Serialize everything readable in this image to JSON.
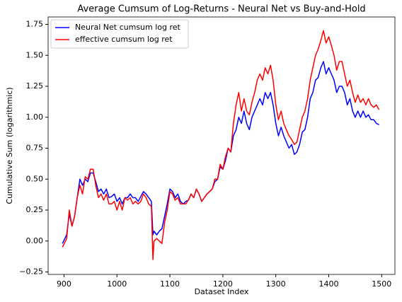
{
  "chart_data": {
    "type": "line",
    "title": "Average Cumsum of Log-Returns - Neural Net vs Buy-and-Hold",
    "xlabel": "Dataset Index",
    "ylabel": "Cumulative Sum (logarithmic)",
    "legend": "upper left",
    "xlim": [
      870,
      1525
    ],
    "ylim": [
      -0.27,
      1.81
    ],
    "xticks": [
      900,
      1000,
      1100,
      1200,
      1300,
      1400,
      1500
    ],
    "yticks": [
      {
        "value": -0.25,
        "label": "−0.25"
      },
      {
        "value": 0,
        "label": "0.00"
      },
      0.25,
      {
        "value": 0.5,
        "label": "0.50"
      },
      0.75,
      {
        "value": 1,
        "label": "1.00"
      },
      1.25,
      {
        "value": 1.5,
        "label": "1.50"
      },
      1.75
    ],
    "x": [
      897,
      905,
      910,
      915,
      920,
      925,
      930,
      935,
      940,
      945,
      950,
      955,
      960,
      965,
      970,
      975,
      980,
      985,
      990,
      995,
      1000,
      1005,
      1010,
      1015,
      1020,
      1025,
      1030,
      1035,
      1040,
      1045,
      1050,
      1055,
      1060,
      1065,
      1068,
      1070,
      1075,
      1080,
      1085,
      1090,
      1095,
      1100,
      1105,
      1110,
      1115,
      1120,
      1125,
      1130,
      1135,
      1140,
      1145,
      1150,
      1155,
      1160,
      1165,
      1170,
      1175,
      1180,
      1185,
      1190,
      1195,
      1200,
      1205,
      1210,
      1215,
      1220,
      1225,
      1230,
      1235,
      1240,
      1245,
      1250,
      1255,
      1260,
      1265,
      1270,
      1275,
      1280,
      1285,
      1290,
      1295,
      1300,
      1305,
      1310,
      1315,
      1320,
      1325,
      1330,
      1335,
      1340,
      1345,
      1350,
      1355,
      1360,
      1365,
      1370,
      1375,
      1380,
      1385,
      1390,
      1395,
      1400,
      1405,
      1410,
      1415,
      1420,
      1425,
      1430,
      1435,
      1440,
      1445,
      1450,
      1455,
      1460,
      1465,
      1470,
      1475,
      1480,
      1485,
      1490,
      1495
    ],
    "series": [
      {
        "name": "Neural Net cumsum log ret",
        "color": "#0000ff",
        "values": [
          -0.02,
          0.05,
          0.22,
          0.12,
          0.2,
          0.35,
          0.5,
          0.45,
          0.5,
          0.48,
          0.55,
          0.55,
          0.48,
          0.4,
          0.42,
          0.38,
          0.42,
          0.35,
          0.36,
          0.38,
          0.32,
          0.35,
          0.3,
          0.35,
          0.35,
          0.38,
          0.35,
          0.35,
          0.32,
          0.36,
          0.4,
          0.38,
          0.35,
          0.32,
          0.05,
          0.08,
          0.05,
          0.08,
          0.1,
          0.2,
          0.3,
          0.42,
          0.4,
          0.35,
          0.38,
          0.32,
          0.3,
          0.32,
          0.33,
          0.38,
          0.35,
          0.42,
          0.38,
          0.32,
          0.35,
          0.38,
          0.4,
          0.42,
          0.48,
          0.5,
          0.6,
          0.58,
          0.65,
          0.75,
          0.72,
          0.85,
          0.9,
          1.0,
          0.95,
          1.05,
          0.95,
          0.9,
          1.0,
          1.05,
          1.1,
          1.15,
          1.1,
          1.2,
          1.15,
          1.2,
          1.1,
          0.95,
          0.85,
          0.92,
          0.85,
          0.8,
          0.75,
          0.78,
          0.7,
          0.72,
          0.78,
          0.88,
          0.9,
          1.0,
          1.15,
          1.2,
          1.3,
          1.32,
          1.4,
          1.45,
          1.35,
          1.4,
          1.35,
          1.3,
          1.2,
          1.25,
          1.25,
          1.2,
          1.1,
          1.15,
          1.05,
          1.0,
          1.05,
          1.0,
          1.05,
          1.0,
          1.02,
          0.98,
          0.98,
          0.95,
          0.94
        ]
      },
      {
        "name": "effective cumsum log ret",
        "color": "#ff0000",
        "values": [
          -0.05,
          0.02,
          0.25,
          0.12,
          0.2,
          0.35,
          0.45,
          0.38,
          0.52,
          0.5,
          0.58,
          0.58,
          0.45,
          0.35,
          0.38,
          0.33,
          0.38,
          0.3,
          0.3,
          0.32,
          0.25,
          0.32,
          0.25,
          0.35,
          0.33,
          0.35,
          0.3,
          0.32,
          0.3,
          0.32,
          0.38,
          0.35,
          0.3,
          0.28,
          -0.15,
          0.0,
          0.02,
          0.0,
          -0.02,
          0.15,
          0.25,
          0.4,
          0.38,
          0.33,
          0.35,
          0.3,
          0.3,
          0.3,
          0.33,
          0.38,
          0.35,
          0.42,
          0.38,
          0.32,
          0.35,
          0.38,
          0.4,
          0.42,
          0.5,
          0.5,
          0.62,
          0.58,
          0.68,
          0.75,
          0.72,
          0.95,
          1.1,
          1.2,
          1.05,
          1.15,
          1.05,
          1.02,
          1.12,
          1.2,
          1.3,
          1.35,
          1.3,
          1.4,
          1.35,
          1.42,
          1.3,
          1.1,
          0.98,
          1.05,
          0.95,
          0.9,
          0.85,
          0.82,
          0.78,
          0.8,
          0.9,
          1.0,
          1.05,
          1.15,
          1.3,
          1.4,
          1.5,
          1.55,
          1.62,
          1.7,
          1.6,
          1.65,
          1.58,
          1.5,
          1.38,
          1.45,
          1.45,
          1.35,
          1.25,
          1.3,
          1.2,
          1.12,
          1.18,
          1.12,
          1.15,
          1.1,
          1.15,
          1.1,
          1.08,
          1.1,
          1.06
        ]
      }
    ]
  }
}
